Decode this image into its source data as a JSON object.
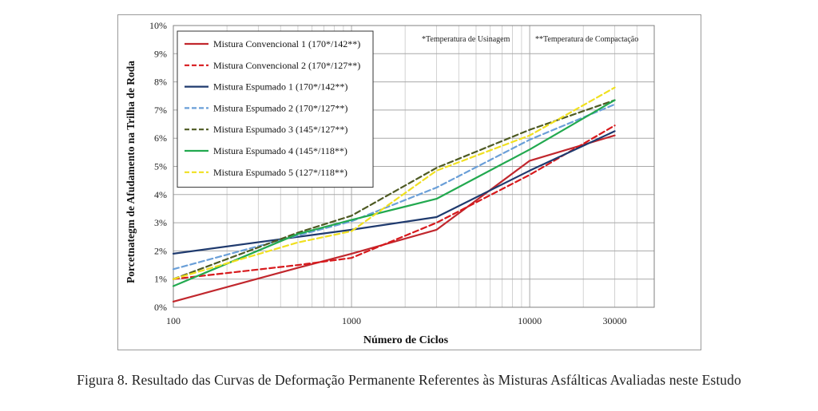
{
  "chart_data": {
    "type": "line",
    "title": "",
    "xlabel": "Número de Ciclos",
    "ylabel": "Porcetnategm de Afudamento na Trilha de Roda",
    "x_scale": "log",
    "xlim": [
      100,
      50000
    ],
    "ylim": [
      0,
      10
    ],
    "x_ticks": [
      100,
      1000,
      10000,
      30000
    ],
    "x_tick_labels": [
      "100",
      "1000",
      "10000",
      "30000"
    ],
    "y_ticks": [
      0,
      1,
      2,
      3,
      4,
      5,
      6,
      7,
      8,
      9,
      10
    ],
    "y_tick_labels": [
      "0%",
      "1%",
      "2%",
      "3%",
      "4%",
      "5%",
      "6%",
      "7%",
      "8%",
      "9%",
      "10%"
    ],
    "grid": true,
    "legend_position": "top-left",
    "annotations": [
      "*Temperatura de Usinagem",
      "**Temperatura de Compactação"
    ],
    "x": [
      100,
      500,
      1000,
      3000,
      10000,
      30000
    ],
    "series": [
      {
        "name": "Mistura Convencional 1 (170*/142**)",
        "color": "#c1272d",
        "dash": "solid",
        "values": [
          0.2,
          1.4,
          1.9,
          2.75,
          5.2,
          6.1
        ]
      },
      {
        "name": "Mistura Convencional 2 (170*/127**)",
        "color": "#d7191c",
        "dash": "dashed",
        "values": [
          1.0,
          1.5,
          1.75,
          3.0,
          4.7,
          6.45
        ]
      },
      {
        "name": "Mistura Espumado 1 (170*/142**)",
        "color": "#1f3a6e",
        "dash": "solid",
        "values": [
          1.9,
          2.5,
          2.75,
          3.2,
          4.85,
          6.25
        ]
      },
      {
        "name": "Mistura Espumado 2 (170*/127**)",
        "color": "#6a9fd8",
        "dash": "dashed",
        "values": [
          1.35,
          2.55,
          3.05,
          4.25,
          5.95,
          7.2
        ]
      },
      {
        "name": "Mistura Espumado 3 (145*/127**)",
        "color": "#4e5a23",
        "dash": "dashed",
        "values": [
          1.0,
          2.65,
          3.25,
          4.95,
          6.3,
          7.35
        ]
      },
      {
        "name": "Mistura Espumado 4 (145*/118**)",
        "color": "#22a94f",
        "dash": "solid",
        "values": [
          0.75,
          2.6,
          3.1,
          3.85,
          5.6,
          7.35
        ]
      },
      {
        "name": "Mistura Espumado 5 (127*/118**)",
        "color": "#f0e020",
        "dash": "dashed",
        "values": [
          1.0,
          2.3,
          2.7,
          4.85,
          6.1,
          7.8
        ]
      }
    ]
  },
  "caption": "Figura 8. Resultado das Curvas de Deformação Permanente Referentes às Misturas Asfálticas Avaliadas neste Estudo"
}
